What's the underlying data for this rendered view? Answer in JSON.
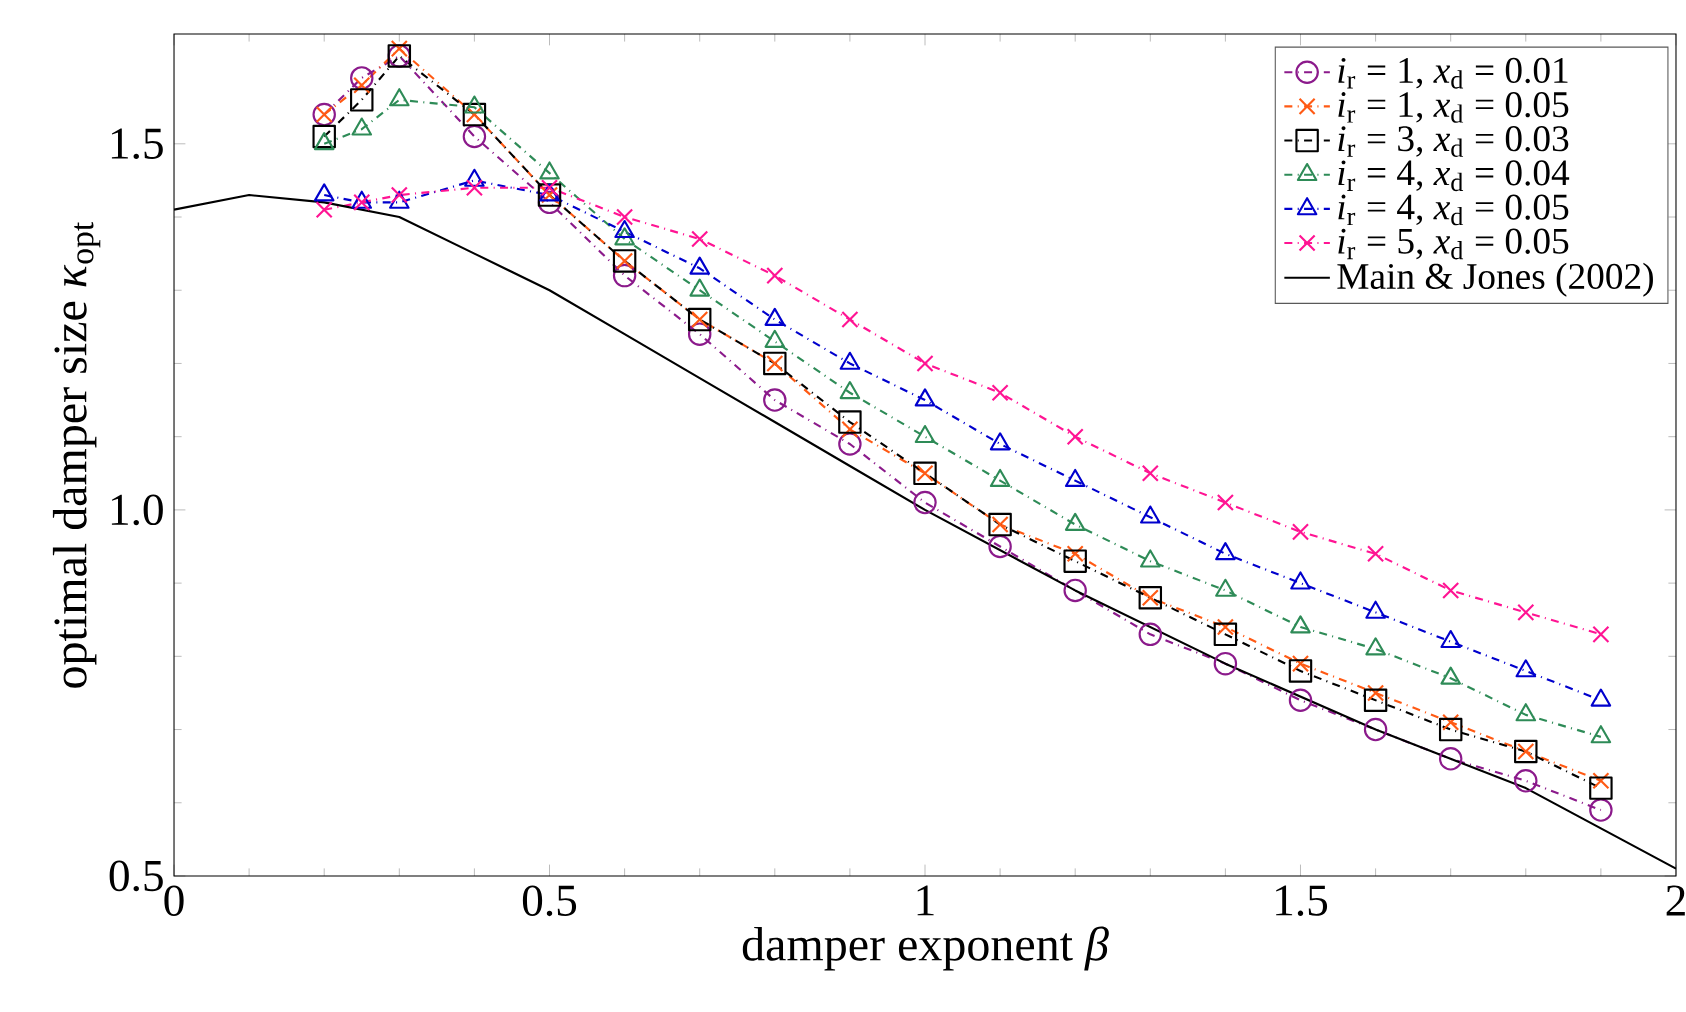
{
  "chart_data": {
    "type": "line",
    "xlabel": "damper exponent *β*",
    "ylabel": "optimal damper size *κ*$_{opt}$",
    "xlim": [
      0,
      2
    ],
    "ylim": [
      0.5,
      1.65
    ],
    "xticks": [
      0,
      0.5,
      1,
      1.5,
      2
    ],
    "yticks": [
      0.5,
      {
        "value": 1,
        "label": "1.0"
      },
      1.5
    ],
    "legend": "top right",
    "grid": false,
    "series": [
      {
        "name": "*i*$_{r}$ = 1, *x*$_{d}$ = 0.01",
        "color": "#8b1a8b",
        "marker": "circle",
        "line_style": "dashed",
        "x": [
          0.2,
          0.25,
          0.3,
          0.4,
          0.5,
          0.6,
          0.7,
          0.8,
          0.9,
          1.0,
          1.1,
          1.2,
          1.3,
          1.4,
          1.5,
          1.6,
          1.7,
          1.8,
          1.9
        ],
        "values": [
          1.54,
          1.59,
          1.62,
          1.51,
          1.42,
          1.32,
          1.24,
          1.15,
          1.09,
          1.01,
          0.95,
          0.89,
          0.83,
          0.79,
          0.74,
          0.7,
          0.66,
          0.63,
          0.59
        ]
      },
      {
        "name": "*i*$_{r}$ = 1, *x*$_{d}$ = 0.05",
        "color": "#ff5a14",
        "marker": "cross",
        "line_style": "dashed",
        "x": [
          0.2,
          0.25,
          0.3,
          0.4,
          0.5,
          0.6,
          0.7,
          0.8,
          0.9,
          1.0,
          1.1,
          1.2,
          1.3,
          1.4,
          1.5,
          1.6,
          1.7,
          1.8,
          1.9
        ],
        "values": [
          1.54,
          1.58,
          1.63,
          1.54,
          1.43,
          1.34,
          1.26,
          1.2,
          1.11,
          1.05,
          0.98,
          0.94,
          0.88,
          0.84,
          0.79,
          0.75,
          0.71,
          0.67,
          0.63
        ]
      },
      {
        "name": "*i*$_{r}$ = 3, *x*$_{d}$ = 0.03",
        "color": "#000000",
        "marker": "square",
        "line_style": "dashed",
        "x": [
          0.2,
          0.25,
          0.3,
          0.4,
          0.5,
          0.6,
          0.7,
          0.8,
          0.9,
          1.0,
          1.1,
          1.2,
          1.3,
          1.4,
          1.5,
          1.6,
          1.7,
          1.8,
          1.9
        ],
        "values": [
          1.51,
          1.56,
          1.62,
          1.54,
          1.43,
          1.34,
          1.26,
          1.2,
          1.12,
          1.05,
          0.98,
          0.93,
          0.88,
          0.83,
          0.78,
          0.74,
          0.7,
          0.67,
          0.62
        ]
      },
      {
        "name": "*i*$_{r}$ = 4, *x*$_{d}$ = 0.04",
        "color": "#2e8b57",
        "marker": "triangle",
        "line_style": "dashed",
        "x": [
          0.2,
          0.25,
          0.3,
          0.4,
          0.5,
          0.6,
          0.7,
          0.8,
          0.9,
          1.0,
          1.1,
          1.2,
          1.3,
          1.4,
          1.5,
          1.6,
          1.7,
          1.8,
          1.9
        ],
        "values": [
          1.5,
          1.52,
          1.56,
          1.55,
          1.46,
          1.37,
          1.3,
          1.23,
          1.16,
          1.1,
          1.04,
          0.98,
          0.93,
          0.89,
          0.84,
          0.81,
          0.77,
          0.72,
          0.69
        ]
      },
      {
        "name": "*i*$_{r}$ = 4, *x*$_{d}$ = 0.05",
        "color": "#0000cd",
        "marker": "triangle",
        "line_style": "dashed",
        "x": [
          0.2,
          0.25,
          0.3,
          0.4,
          0.5,
          0.6,
          0.7,
          0.8,
          0.9,
          1.0,
          1.1,
          1.2,
          1.3,
          1.4,
          1.5,
          1.6,
          1.7,
          1.8,
          1.9
        ],
        "values": [
          1.43,
          1.42,
          1.42,
          1.45,
          1.43,
          1.38,
          1.33,
          1.26,
          1.2,
          1.15,
          1.09,
          1.04,
          0.99,
          0.94,
          0.9,
          0.86,
          0.82,
          0.78,
          0.74
        ]
      },
      {
        "name": "*i*$_{r}$ = 5, *x*$_{d}$ = 0.05",
        "color": "#ff1493",
        "marker": "cross",
        "line_style": "dashed",
        "x": [
          0.2,
          0.25,
          0.3,
          0.4,
          0.5,
          0.6,
          0.7,
          0.8,
          0.9,
          1.0,
          1.1,
          1.2,
          1.3,
          1.4,
          1.5,
          1.6,
          1.7,
          1.8,
          1.9
        ],
        "values": [
          1.41,
          1.42,
          1.43,
          1.44,
          1.44,
          1.4,
          1.37,
          1.32,
          1.26,
          1.2,
          1.16,
          1.1,
          1.05,
          1.01,
          0.97,
          0.94,
          0.89,
          0.86,
          0.83
        ]
      },
      {
        "name": "Main & Jones (2002)",
        "color": "#000000",
        "marker": "none",
        "line_style": "solid",
        "x": [
          0,
          0.1,
          0.2,
          0.3,
          0.4,
          0.5,
          0.6,
          0.7,
          0.8,
          0.9,
          1.0,
          1.2,
          1.4,
          1.6,
          1.8,
          2.0
        ],
        "values": [
          1.41,
          1.43,
          1.42,
          1.4,
          1.35,
          1.3,
          1.24,
          1.18,
          1.12,
          1.06,
          1.0,
          0.89,
          0.79,
          0.7,
          0.62,
          0.51
        ]
      }
    ]
  }
}
